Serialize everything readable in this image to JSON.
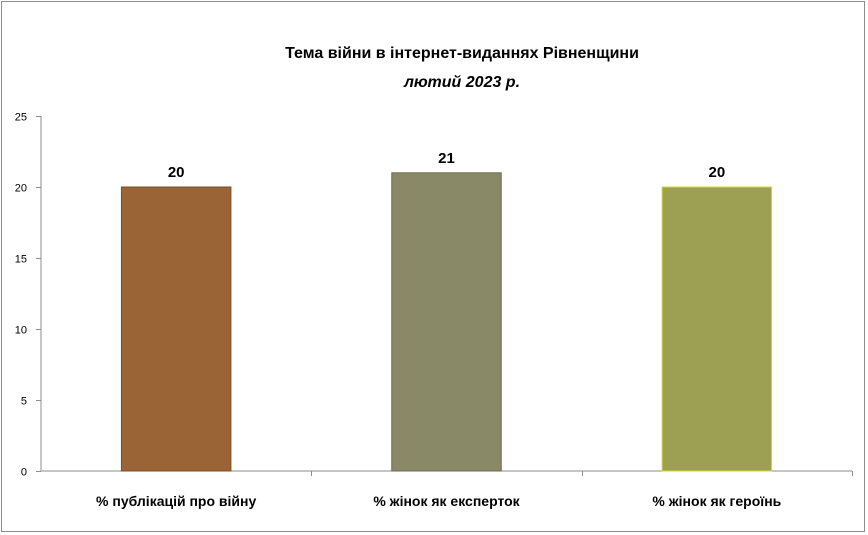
{
  "chart_data": {
    "type": "bar",
    "title": "Тема війни в інтернет-виданнях  Рівненщини",
    "subtitle": "лютий 2023 р.",
    "categories": [
      "% публікацій про війну",
      "% жінок як експерток",
      "% жінок як героїнь"
    ],
    "values": [
      20,
      21,
      20
    ],
    "data_labels": [
      "20",
      "21",
      "20"
    ],
    "colors": [
      "#9a6436",
      "#898867",
      "#9d9f52"
    ],
    "border_colors": [
      "#7a4e2a",
      "#6d6c50",
      "#d8d830"
    ],
    "ylim": [
      0,
      25
    ],
    "yticks": [
      0,
      5,
      10,
      15,
      20,
      25
    ],
    "xlabel": "",
    "ylabel": "",
    "grid": false,
    "legend": "none"
  }
}
